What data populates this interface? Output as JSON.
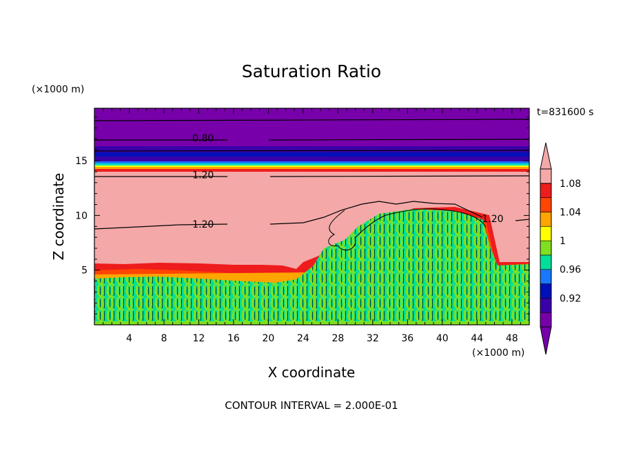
{
  "chart_data": {
    "type": "heatmap",
    "title": "Saturation Ratio",
    "xlabel": "X coordinate",
    "ylabel": "Z coordinate",
    "x_unit": "(×1000 m)",
    "y_unit": "(×1000 m)",
    "time_label": "t=831600 s",
    "footer": "CONTOUR INTERVAL = 2.000E-01",
    "xlim": [
      0,
      50
    ],
    "ylim": [
      0,
      19.8
    ],
    "xticks": [
      "4",
      "8",
      "12",
      "16",
      "20",
      "24",
      "28",
      "32",
      "36",
      "40",
      "44",
      "48"
    ],
    "yticks": [
      "5",
      "10",
      "15"
    ],
    "colorbar": {
      "levels": [
        "0.92",
        "0.96",
        "1",
        "1.04",
        "1.08"
      ],
      "colors": [
        "#7700aa",
        "#3a00a8",
        "#0010b8",
        "#1a78ff",
        "#00e09a",
        "#80e020",
        "#ffff00",
        "#ffa500",
        "#ff4500",
        "#ee1c1c",
        "#f4a8a8"
      ]
    },
    "contour_labels": [
      {
        "text": "0.80",
        "x": 12.5,
        "z": 17.1
      },
      {
        "text": "1.20",
        "x": 12.5,
        "z": 13.7
      },
      {
        "text": "1.20",
        "x": 12.5,
        "z": 9.2
      },
      {
        "text": "1.20",
        "x": 45.8,
        "z": 9.7
      }
    ]
  }
}
